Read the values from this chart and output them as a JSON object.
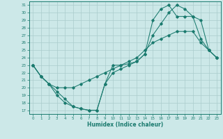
{
  "xlabel": "Humidex (Indice chaleur)",
  "xlim": [
    -0.5,
    23.5
  ],
  "ylim": [
    16.5,
    31.5
  ],
  "yticks": [
    17,
    18,
    19,
    20,
    21,
    22,
    23,
    24,
    25,
    26,
    27,
    28,
    29,
    30,
    31
  ],
  "xticks": [
    0,
    1,
    2,
    3,
    4,
    5,
    6,
    7,
    8,
    9,
    10,
    11,
    12,
    13,
    14,
    15,
    16,
    17,
    18,
    19,
    20,
    21,
    22,
    23
  ],
  "bg_color": "#cce8e8",
  "line_color": "#1a7a6e",
  "grid_color": "#aacccc",
  "line1_x": [
    0,
    1,
    2,
    3,
    4,
    5,
    6,
    7,
    8,
    9,
    10,
    11,
    12,
    13,
    14,
    15,
    16,
    17,
    18,
    19,
    20,
    21,
    22,
    23
  ],
  "line1_y": [
    23,
    21.5,
    20.5,
    19.5,
    18.5,
    17.5,
    17.2,
    17.0,
    17.0,
    20.5,
    23.0,
    23.0,
    23.2,
    23.5,
    24.5,
    27.0,
    28.5,
    30.0,
    31.0,
    30.5,
    29.5,
    29.0,
    25.0,
    24.0
  ],
  "line2_x": [
    0,
    1,
    2,
    3,
    4,
    5,
    6,
    7,
    8,
    9,
    10,
    11,
    12,
    13,
    14,
    15,
    16,
    17,
    18,
    19,
    20,
    21,
    22,
    23
  ],
  "line2_y": [
    23,
    21.5,
    20.5,
    20.0,
    20.0,
    20.0,
    20.5,
    21.0,
    21.5,
    22.0,
    22.5,
    23.0,
    23.5,
    24.0,
    25.0,
    26.0,
    26.5,
    27.0,
    27.5,
    27.5,
    27.5,
    26.0,
    25.0,
    24.0
  ],
  "line3_x": [
    0,
    1,
    2,
    3,
    4,
    5,
    6,
    7,
    8,
    9,
    10,
    11,
    12,
    13,
    14,
    15,
    16,
    17,
    18,
    19,
    20,
    21,
    22,
    23
  ],
  "line3_y": [
    23,
    21.5,
    20.5,
    19.0,
    18.0,
    17.5,
    17.2,
    17.0,
    17.0,
    20.5,
    22.0,
    22.5,
    23.0,
    23.5,
    24.5,
    29.0,
    30.5,
    31.0,
    29.5,
    29.5,
    29.5,
    26.5,
    25.0,
    24.0
  ]
}
